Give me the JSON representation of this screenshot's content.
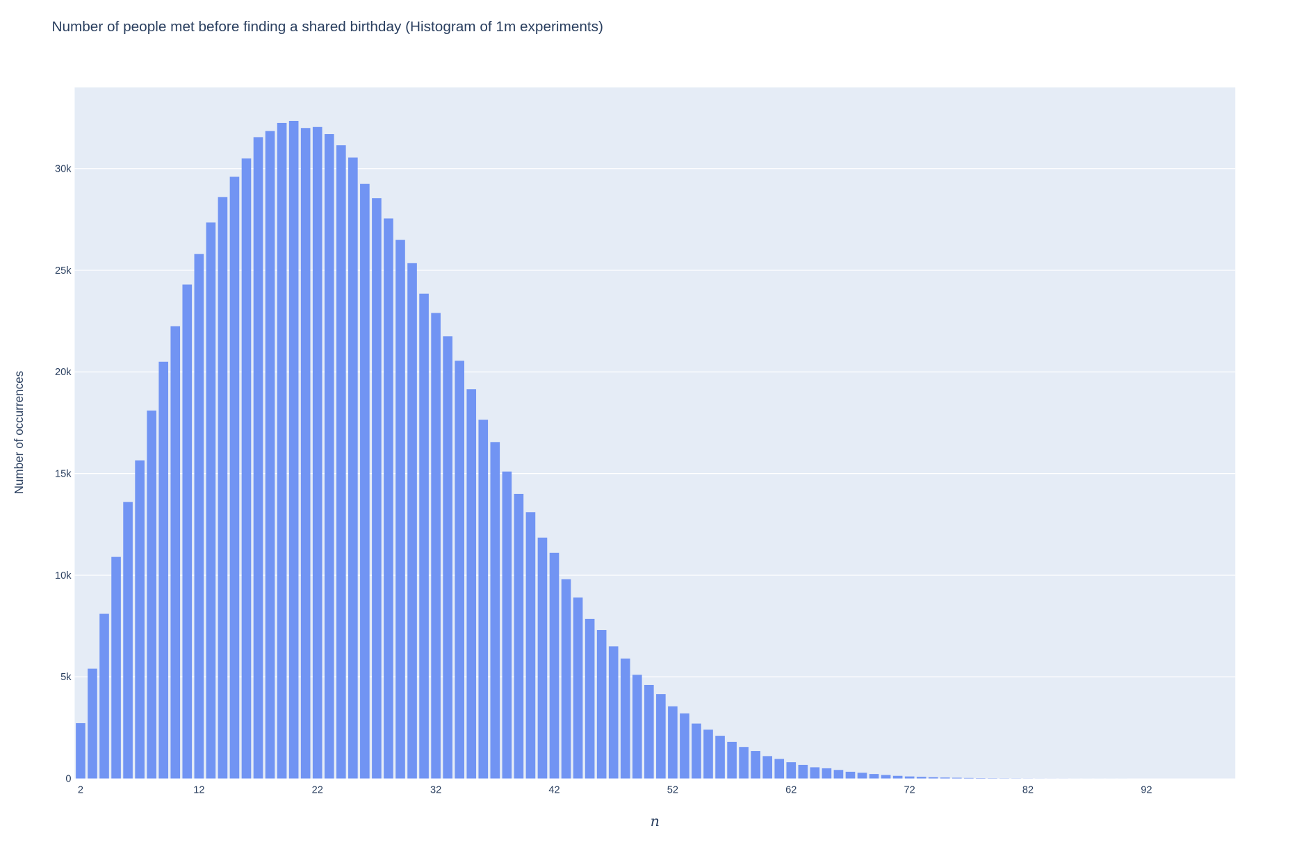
{
  "chart_data": {
    "type": "bar",
    "title": "Number of people met before finding a shared birthday (Histogram of 1m experiments)",
    "xlabel": "n",
    "ylabel": "Number of occurrences",
    "xlim": [
      1.5,
      99.5
    ],
    "ylim": [
      0,
      34000
    ],
    "grid": true,
    "x_ticks": [
      2,
      12,
      22,
      32,
      42,
      52,
      62,
      72,
      82,
      92
    ],
    "x_tick_labels": [
      "2",
      "12",
      "22",
      "32",
      "42",
      "52",
      "62",
      "72",
      "82",
      "92"
    ],
    "y_ticks": [
      0,
      5000,
      10000,
      15000,
      20000,
      25000,
      30000
    ],
    "y_tick_labels": [
      "0",
      "5k",
      "10k",
      "15k",
      "20k",
      "25k",
      "30k"
    ],
    "bar_color": "#7194f3",
    "plot_bg": "#e5ecf6",
    "x": [
      2,
      3,
      4,
      5,
      6,
      7,
      8,
      9,
      10,
      11,
      12,
      13,
      14,
      15,
      16,
      17,
      18,
      19,
      20,
      21,
      22,
      23,
      24,
      25,
      26,
      27,
      28,
      29,
      30,
      31,
      32,
      33,
      34,
      35,
      36,
      37,
      38,
      39,
      40,
      41,
      42,
      43,
      44,
      45,
      46,
      47,
      48,
      49,
      50,
      51,
      52,
      53,
      54,
      55,
      56,
      57,
      58,
      59,
      60,
      61,
      62,
      63,
      64,
      65,
      66,
      67,
      68,
      69,
      70,
      71,
      72,
      73,
      74,
      75,
      76,
      77,
      78,
      79,
      80,
      81,
      82,
      83,
      84,
      85,
      86,
      87,
      88,
      89,
      90,
      91,
      92,
      93,
      94,
      95,
      96,
      97,
      98
    ],
    "values": [
      2720,
      5400,
      8100,
      10900,
      13600,
      15650,
      18100,
      20500,
      22250,
      24300,
      25800,
      27350,
      28600,
      29600,
      30500,
      31550,
      31850,
      32250,
      32350,
      32000,
      32050,
      31700,
      31150,
      30550,
      29250,
      28550,
      27550,
      26500,
      25350,
      23850,
      22900,
      21750,
      20550,
      19150,
      17650,
      16550,
      15100,
      14000,
      13100,
      11850,
      11100,
      9800,
      8900,
      7850,
      7300,
      6500,
      5900,
      5100,
      4600,
      4150,
      3550,
      3200,
      2700,
      2400,
      2100,
      1800,
      1550,
      1350,
      1100,
      960,
      800,
      670,
      550,
      500,
      420,
      330,
      280,
      220,
      170,
      130,
      100,
      80,
      60,
      45,
      35,
      25,
      18,
      13,
      9,
      7,
      5,
      3,
      2,
      2,
      1,
      1,
      1,
      1,
      1,
      0,
      0,
      0,
      0,
      0,
      0,
      0,
      0
    ]
  }
}
